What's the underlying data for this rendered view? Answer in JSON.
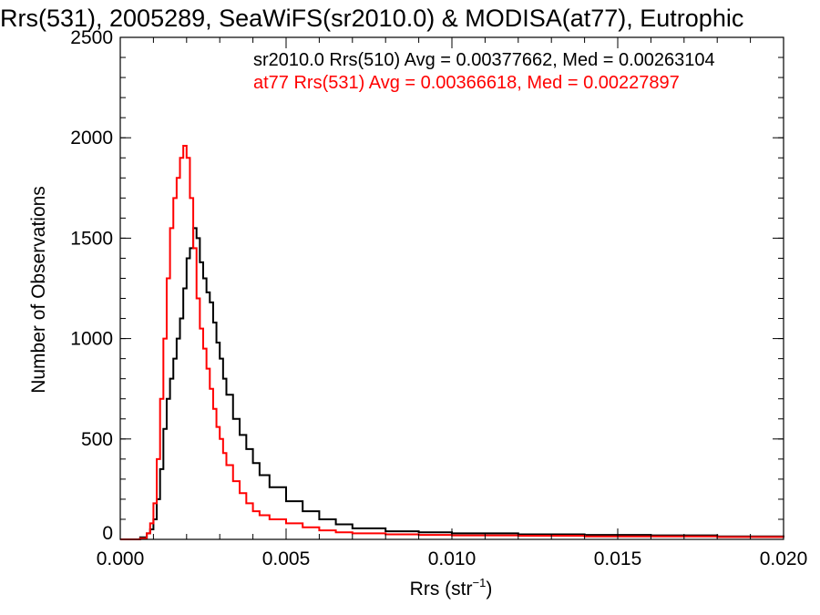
{
  "chart_data": {
    "type": "line",
    "title": "Rrs(531), 2005289, SeaWiFS(sr2010.0) & MODISA(at77), Eutrophic",
    "xlabel": {
      "base": "Rrs (str",
      "sup": "−1",
      "close": ")"
    },
    "ylabel": "Number of Observations",
    "xlim": [
      0.0,
      0.02
    ],
    "ylim": [
      0,
      2500
    ],
    "xticks": [
      0.0,
      0.005,
      0.01,
      0.015,
      0.02
    ],
    "xtick_labels": [
      "0.000",
      "0.005",
      "0.010",
      "0.015",
      "0.020"
    ],
    "yticks": [
      0,
      500,
      1000,
      1500,
      2000,
      2500
    ],
    "ytick_labels": [
      "0",
      "500",
      "1000",
      "1500",
      "2000",
      "2500"
    ],
    "grid": false,
    "annotations": [
      {
        "text": "sr2010.0 Rrs(510) Avg = 0.00377662, Med = 0.00263104",
        "color": "#000000"
      },
      {
        "text": "at77 Rrs(531) Avg = 0.00366618, Med = 0.00227897",
        "color": "#ff0000"
      }
    ],
    "series": [
      {
        "color": "#000000",
        "x": [
          0.0,
          0.0004,
          0.0006,
          0.0008,
          0.0009,
          0.001,
          0.0011,
          0.0012,
          0.0013,
          0.0014,
          0.0015,
          0.0016,
          0.0017,
          0.0018,
          0.0019,
          0.002,
          0.0021,
          0.0022,
          0.0023,
          0.0024,
          0.0025,
          0.0026,
          0.0027,
          0.0028,
          0.0029,
          0.003,
          0.0031,
          0.0032,
          0.0034,
          0.0036,
          0.0038,
          0.004,
          0.0042,
          0.0045,
          0.005,
          0.0055,
          0.006,
          0.0065,
          0.007,
          0.008,
          0.009,
          0.01,
          0.012,
          0.014,
          0.016,
          0.018,
          0.02
        ],
        "y": [
          0,
          0,
          10,
          30,
          50,
          100,
          200,
          350,
          550,
          700,
          800,
          900,
          1000,
          1100,
          1250,
          1400,
          1450,
          1550,
          1500,
          1380,
          1300,
          1230,
          1180,
          1080,
          980,
          900,
          800,
          720,
          600,
          520,
          450,
          380,
          320,
          260,
          190,
          140,
          100,
          75,
          55,
          40,
          35,
          30,
          25,
          22,
          20,
          15,
          10
        ]
      },
      {
        "color": "#ff0000",
        "x": [
          0.0,
          0.0004,
          0.0006,
          0.0008,
          0.0009,
          0.001,
          0.0011,
          0.0012,
          0.0013,
          0.0014,
          0.0015,
          0.0016,
          0.0017,
          0.0018,
          0.0019,
          0.002,
          0.0021,
          0.0022,
          0.0023,
          0.0024,
          0.0025,
          0.0026,
          0.0027,
          0.0028,
          0.0029,
          0.003,
          0.0031,
          0.0032,
          0.0034,
          0.0036,
          0.0038,
          0.004,
          0.0042,
          0.0045,
          0.005,
          0.0055,
          0.006,
          0.0065,
          0.007,
          0.008,
          0.009,
          0.01,
          0.012,
          0.014,
          0.016,
          0.018,
          0.02
        ],
        "y": [
          0,
          0,
          5,
          30,
          80,
          180,
          400,
          700,
          1000,
          1300,
          1550,
          1700,
          1800,
          1900,
          1960,
          1900,
          1700,
          1450,
          1200,
          1050,
          950,
          850,
          750,
          650,
          560,
          500,
          430,
          370,
          290,
          230,
          180,
          140,
          120,
          100,
          80,
          60,
          45,
          35,
          30,
          25,
          22,
          20,
          18,
          15,
          15,
          12,
          10
        ]
      }
    ]
  }
}
